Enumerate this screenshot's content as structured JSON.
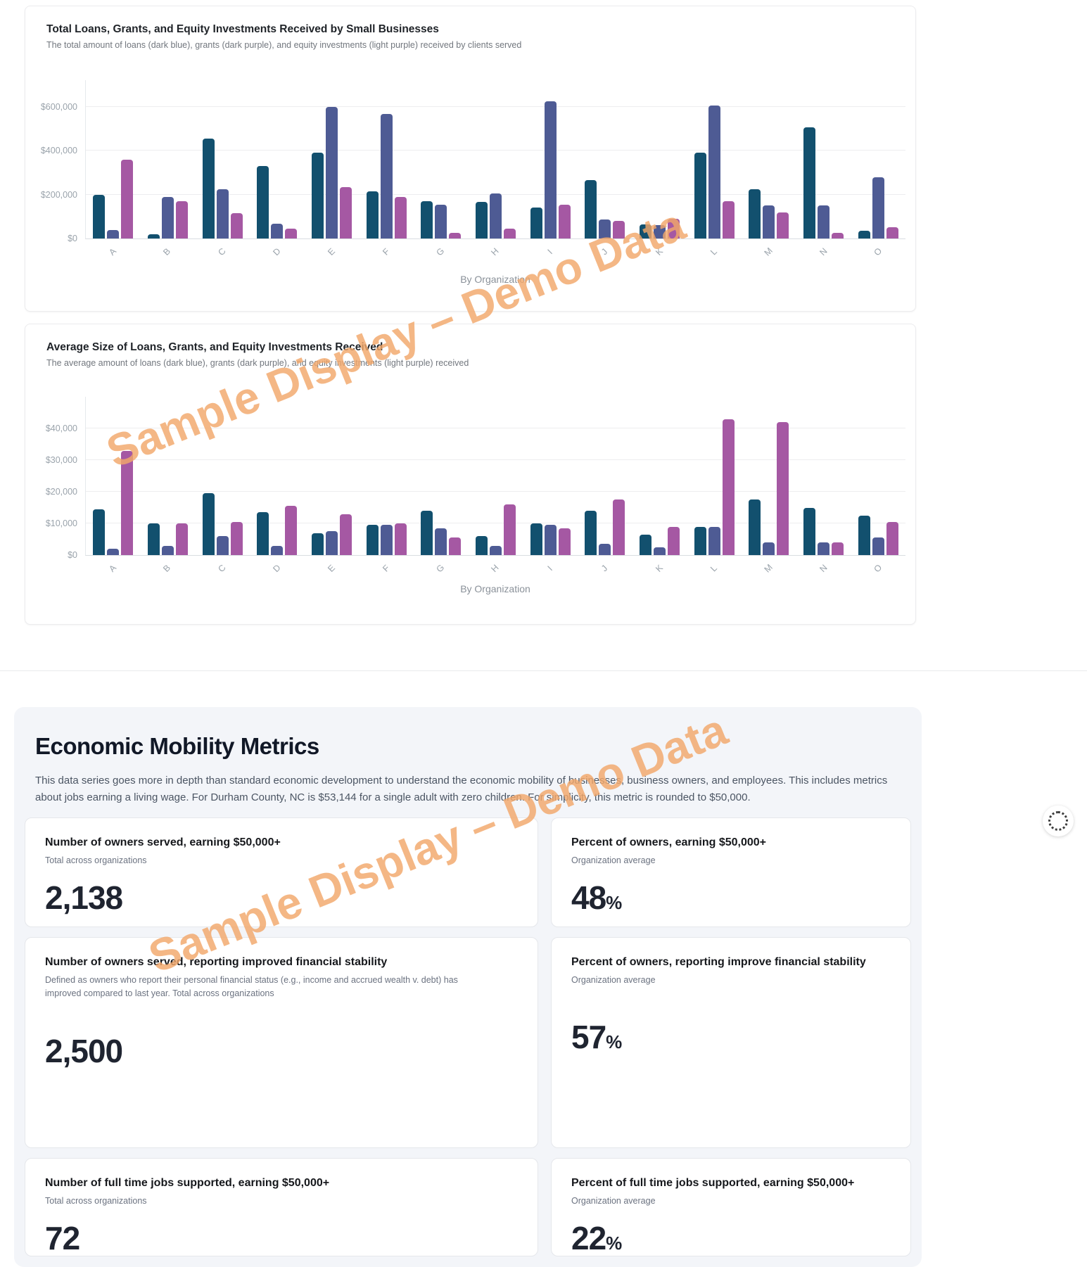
{
  "watermark": {
    "text": "Sample Display – Demo Data",
    "color": "#f2a76a"
  },
  "chart_data": [
    {
      "type": "bar",
      "title": "Total Loans, Grants, and Equity Investments Received by Small Businesses",
      "subtitle": "The total amount of loans (dark blue), grants (dark purple), and equity investments (light purple) received by clients served",
      "xlabel": "By Organization",
      "categories": [
        "A",
        "B",
        "C",
        "D",
        "E",
        "F",
        "G",
        "H",
        "I",
        "J",
        "K",
        "L",
        "M",
        "N",
        "O"
      ],
      "series": [
        {
          "name": "Loans",
          "color": "#12506e",
          "values": [
            200000,
            20000,
            455000,
            330000,
            390000,
            215000,
            170000,
            165000,
            140000,
            265000,
            65000,
            390000,
            225000,
            505000,
            35000
          ]
        },
        {
          "name": "Grants",
          "color": "#4e5b94",
          "values": [
            40000,
            190000,
            225000,
            68000,
            600000,
            565000,
            155000,
            205000,
            625000,
            85000,
            60000,
            605000,
            150000,
            150000,
            280000
          ]
        },
        {
          "name": "Equity Investments",
          "color": "#a558a3",
          "values": [
            360000,
            170000,
            115000,
            45000,
            235000,
            190000,
            25000,
            45000,
            155000,
            80000,
            90000,
            170000,
            120000,
            25000,
            50000
          ]
        }
      ],
      "ylim": [
        0,
        720000
      ],
      "yticks": [
        0,
        200000,
        400000,
        600000
      ],
      "ytick_labels": [
        "$0",
        "$200,000",
        "$400,000",
        "$600,000"
      ],
      "grid": "horizontal",
      "legend": "none"
    },
    {
      "type": "bar",
      "title": "Average Size of Loans, Grants, and Equity Investments Received",
      "subtitle": "The average amount of loans (dark blue), grants (dark purple), and equity investments (light purple) received",
      "xlabel": "By Organization",
      "categories": [
        "A",
        "B",
        "C",
        "D",
        "E",
        "F",
        "G",
        "H",
        "I",
        "J",
        "K",
        "L",
        "M",
        "N",
        "O"
      ],
      "series": [
        {
          "name": "Loans",
          "color": "#12506e",
          "values": [
            14500,
            10000,
            19500,
            13500,
            7000,
            9500,
            14000,
            6000,
            10000,
            14000,
            6500,
            9000,
            17500,
            15000,
            12500
          ]
        },
        {
          "name": "Grants",
          "color": "#4e5b94",
          "values": [
            2000,
            3000,
            6000,
            3000,
            7500,
            9500,
            8500,
            3000,
            9500,
            3500,
            2500,
            9000,
            4000,
            4000,
            5500
          ]
        },
        {
          "name": "Equity Investments",
          "color": "#a558a3",
          "values": [
            33000,
            10000,
            10500,
            15500,
            13000,
            10000,
            5500,
            16000,
            8500,
            17500,
            9000,
            43000,
            42000,
            4000,
            10500
          ]
        }
      ],
      "ylim": [
        0,
        50000
      ],
      "yticks": [
        0,
        10000,
        20000,
        30000,
        40000
      ],
      "ytick_labels": [
        "$0",
        "$10,000",
        "$20,000",
        "$30,000",
        "$40,000"
      ],
      "grid": "horizontal",
      "legend": "none"
    }
  ],
  "metrics_section": {
    "title": "Economic Mobility Metrics",
    "description": "This data series goes more in depth than standard economic development to understand the economic mobility of businesses, business owners, and employees. This includes metrics about jobs earning a living wage. For Durham County, NC is $53,144 for a single adult with zero children. For simplicity, this metric is rounded to $50,000.",
    "cards": [
      {
        "title": "Number of owners served, earning $50,000+",
        "subtitle": "Total across organizations",
        "value": "2,138",
        "unit": ""
      },
      {
        "title": "Percent of owners, earning $50,000+",
        "subtitle": "Organization average",
        "value": "48",
        "unit": "%"
      },
      {
        "title": "Number of owners served, reporting improved financial stability",
        "subtitle": "Defined as owners who report their personal financial status (e.g., income and accrued wealth v. debt) has improved compared to last year. Total across organizations",
        "value": "2,500",
        "unit": ""
      },
      {
        "title": "Percent of owners, reporting improve financial stability",
        "subtitle": "Organization average",
        "value": "57",
        "unit": "%"
      },
      {
        "title": "Number of full time jobs supported, earning $50,000+",
        "subtitle": "Total across organizations",
        "value": "72",
        "unit": ""
      },
      {
        "title": "Percent of full time jobs supported, earning $50,000+",
        "subtitle": "Organization average",
        "value": "22",
        "unit": "%"
      }
    ]
  }
}
